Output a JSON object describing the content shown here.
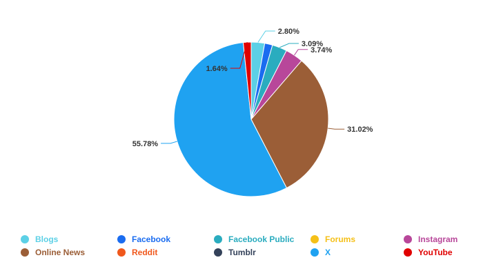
{
  "chart_data": {
    "type": "pie",
    "title": "",
    "slices": [
      {
        "name": "Blogs",
        "value": 2.8,
        "label": "2.80%",
        "color": "#5cd0e6"
      },
      {
        "name": "Facebook",
        "value": 1.64,
        "label": "",
        "color": "#1a6cf0"
      },
      {
        "name": "Facebook Public",
        "value": 3.09,
        "label": "3.09%",
        "color": "#2aacbf"
      },
      {
        "name": "Instagram",
        "value": 3.74,
        "label": "3.74%",
        "color": "#b8479a"
      },
      {
        "name": "Online News",
        "value": 31.02,
        "label": "31.02%",
        "color": "#9b5e37"
      },
      {
        "name": "X",
        "value": 55.78,
        "label": "55.78%",
        "color": "#1fa2f1"
      },
      {
        "name": "YouTube",
        "value": 1.64,
        "label": "1.64%",
        "color": "#e00000"
      }
    ],
    "legend": {
      "placement": "bottom",
      "rows": [
        [
          {
            "name": "Blogs",
            "color": "#5cd0e6"
          },
          {
            "name": "Facebook",
            "color": "#1a6cf0"
          },
          {
            "name": "Facebook Public",
            "color": "#2aacbf"
          },
          {
            "name": "Forums",
            "color": "#f5c018"
          },
          {
            "name": "Instagram",
            "color": "#b8479a"
          }
        ],
        [
          {
            "name": "Online News",
            "color": "#9b5e37"
          },
          {
            "name": "Reddit",
            "color": "#f0581c"
          },
          {
            "name": "Tumblr",
            "color": "#34425a"
          },
          {
            "name": "X",
            "color": "#1fa2f1"
          },
          {
            "name": "YouTube",
            "color": "#e00000"
          }
        ]
      ]
    }
  }
}
